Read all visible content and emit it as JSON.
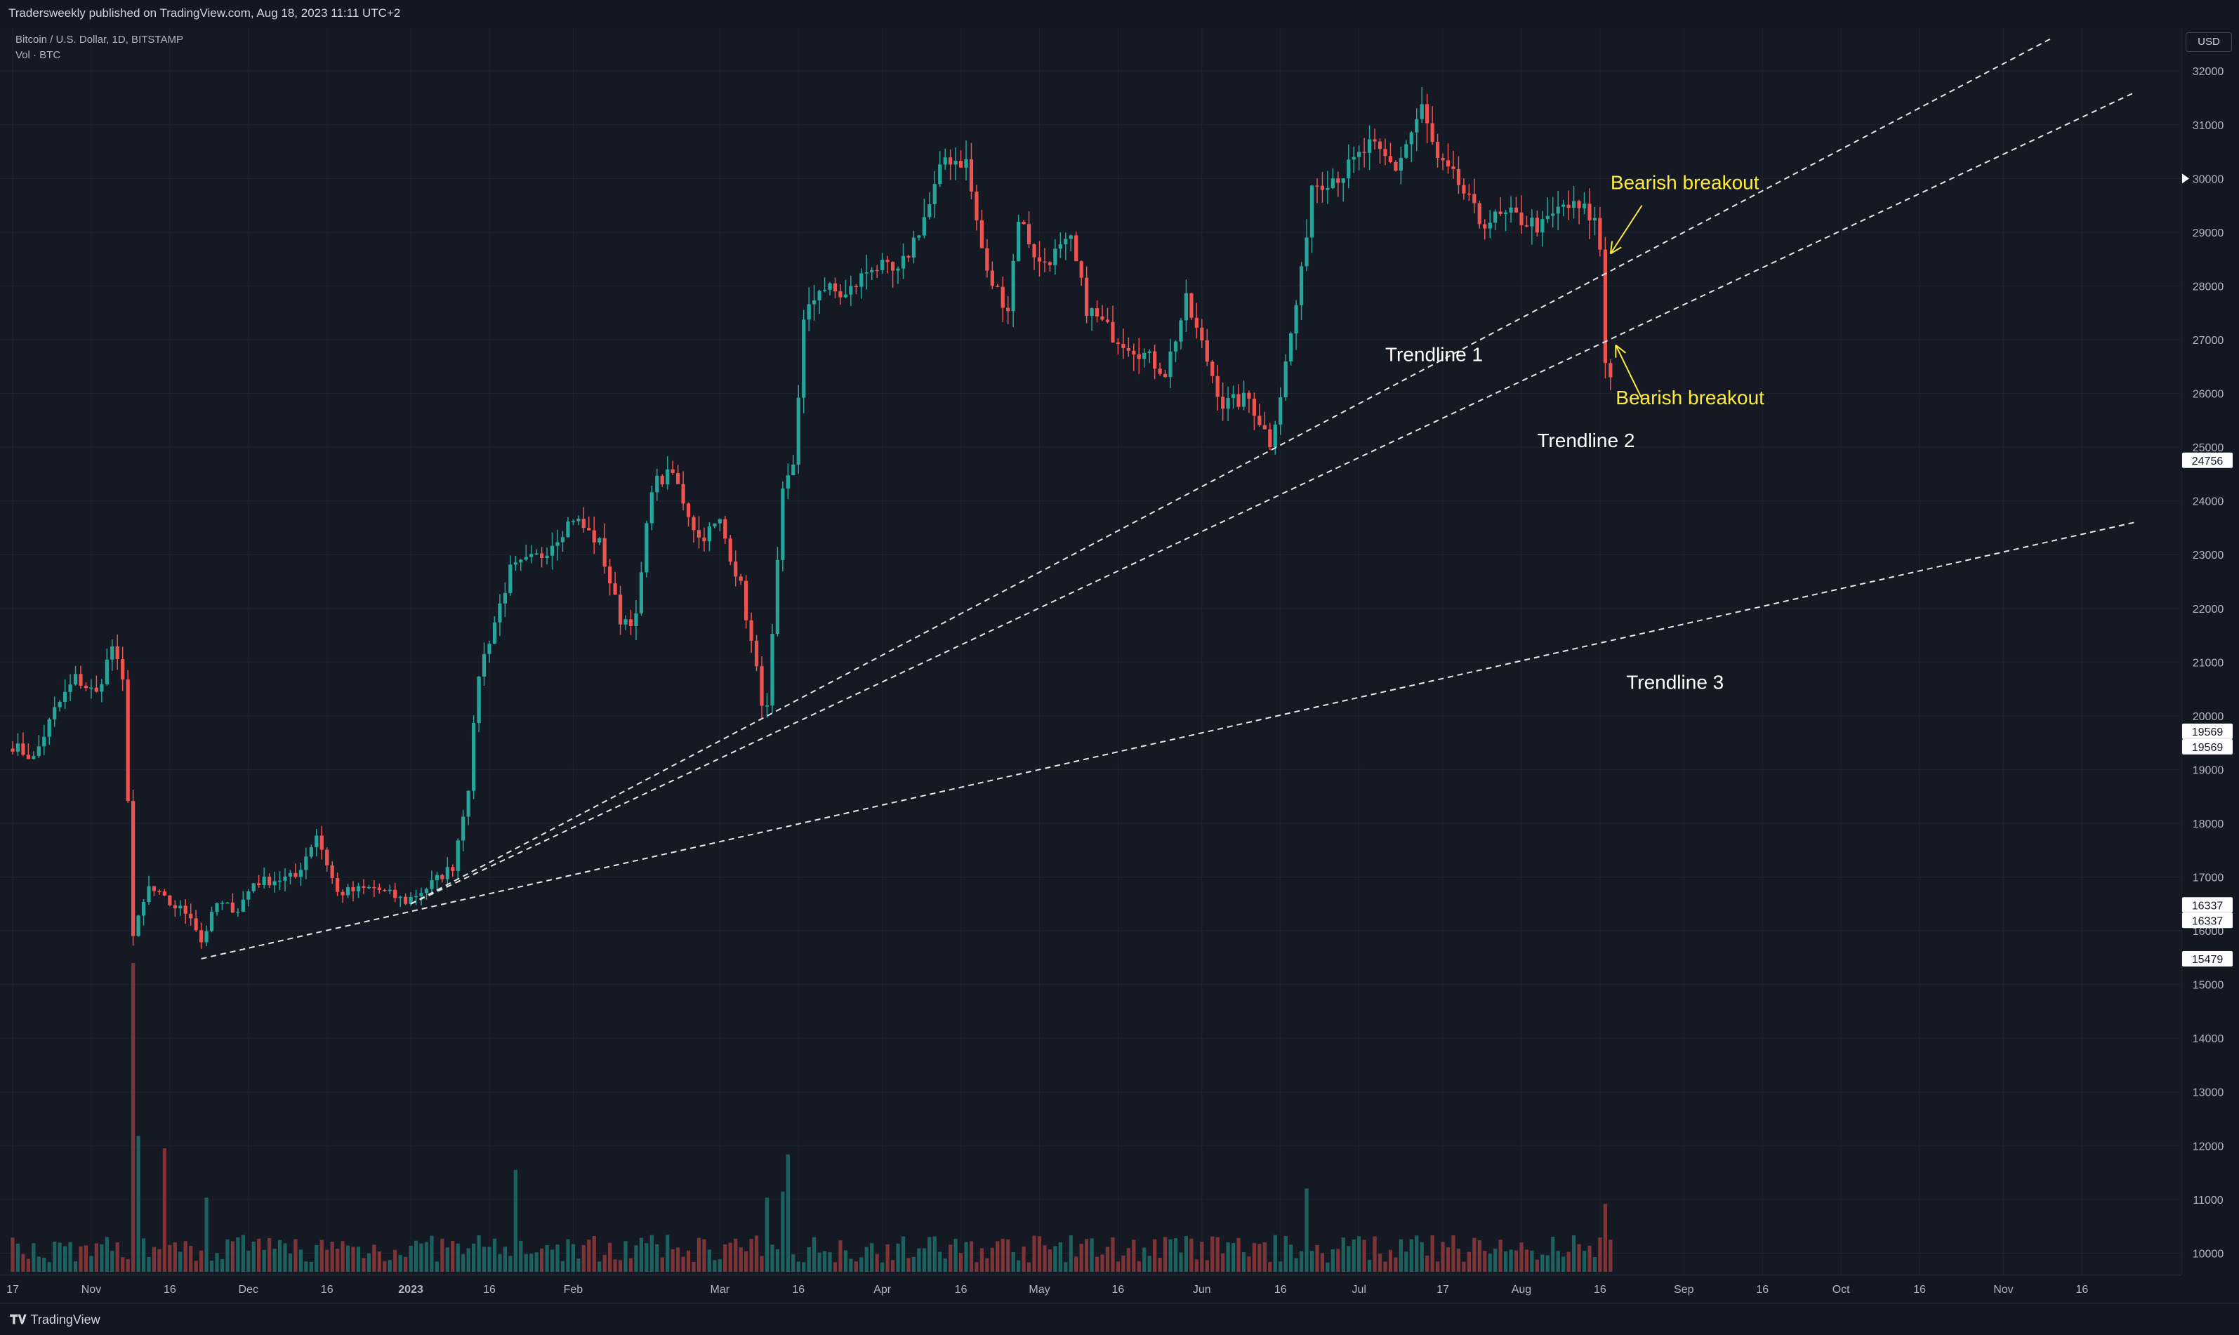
{
  "header": {
    "publish_text": "Tradersweekly published on TradingView.com, Aug 18, 2023 11:11 UTC+2"
  },
  "legend": {
    "symbol_line": "Bitcoin / U.S. Dollar, 1D, BITSTAMP",
    "volume_line": "Vol · BTC"
  },
  "price_axis": {
    "currency_button": "USD"
  },
  "footer": {
    "brand": "TradingView"
  },
  "colors": {
    "background": "#131722",
    "up": "#26a69a",
    "down": "#ef5350",
    "annotation_yellow": "#ffeb3b",
    "text": "#d1d4dc"
  },
  "chart_data": {
    "type": "candlestick",
    "title": "Bitcoin / U.S. Dollar, 1D, BITSTAMP",
    "y_axis": {
      "min": 9600,
      "max": 32800,
      "tick_labels": [
        "10000",
        "11000",
        "12000",
        "13000",
        "14000",
        "15000",
        "16000",
        "17000",
        "18000",
        "19000",
        "20000",
        "21000",
        "22000",
        "23000",
        "24000",
        "25000",
        "26000",
        "27000",
        "28000",
        "29000",
        "30000",
        "31000",
        "32000"
      ]
    },
    "x_axis": {
      "start_date": "2022-10-17",
      "end_date": "2023-11-26",
      "tick_labels": [
        {
          "date": "2022-10-17",
          "label": "17"
        },
        {
          "date": "2022-11-01",
          "label": "Nov"
        },
        {
          "date": "2022-11-16",
          "label": "16"
        },
        {
          "date": "2022-12-01",
          "label": "Dec"
        },
        {
          "date": "2022-12-16",
          "label": "16"
        },
        {
          "date": "2023-01-01",
          "label": "2023"
        },
        {
          "date": "2023-01-16",
          "label": "16"
        },
        {
          "date": "2023-02-01",
          "label": "Feb"
        },
        {
          "date": "2023-03-01",
          "label": "Mar"
        },
        {
          "date": "2023-03-16",
          "label": "16"
        },
        {
          "date": "2023-04-01",
          "label": "Apr"
        },
        {
          "date": "2023-04-16",
          "label": "16"
        },
        {
          "date": "2023-05-01",
          "label": "May"
        },
        {
          "date": "2023-05-16",
          "label": "16"
        },
        {
          "date": "2023-06-01",
          "label": "Jun"
        },
        {
          "date": "2023-06-16",
          "label": "16"
        },
        {
          "date": "2023-07-01",
          "label": "Jul"
        },
        {
          "date": "2023-07-17",
          "label": "17"
        },
        {
          "date": "2023-08-01",
          "label": "Aug"
        },
        {
          "date": "2023-08-16",
          "label": "16"
        },
        {
          "date": "2023-09-01",
          "label": "Sep"
        },
        {
          "date": "2023-09-16",
          "label": "16"
        },
        {
          "date": "2023-10-01",
          "label": "Oct"
        },
        {
          "date": "2023-10-16",
          "label": "16"
        },
        {
          "date": "2023-11-01",
          "label": "Nov"
        },
        {
          "date": "2023-11-16",
          "label": "16"
        }
      ]
    },
    "close_path": [
      [
        "2022-10-17",
        19450
      ],
      [
        "2022-10-21",
        19200
      ],
      [
        "2022-10-25",
        20100
      ],
      [
        "2022-10-29",
        20700
      ],
      [
        "2022-11-02",
        20400
      ],
      [
        "2022-11-05",
        21300
      ],
      [
        "2022-11-07",
        20600
      ],
      [
        "2022-11-08",
        18500
      ],
      [
        "2022-11-09",
        15900
      ],
      [
        "2022-11-12",
        16800
      ],
      [
        "2022-11-16",
        16500
      ],
      [
        "2022-11-20",
        16300
      ],
      [
        "2022-11-22",
        15800
      ],
      [
        "2022-11-25",
        16500
      ],
      [
        "2022-11-29",
        16400
      ],
      [
        "2022-12-02",
        16900
      ],
      [
        "2022-12-10",
        17000
      ],
      [
        "2022-12-14",
        17800
      ],
      [
        "2022-12-18",
        16700
      ],
      [
        "2022-12-25",
        16800
      ],
      [
        "2022-12-31",
        16550
      ],
      [
        "2023-01-04",
        16800
      ],
      [
        "2023-01-09",
        17200
      ],
      [
        "2023-01-12",
        18700
      ],
      [
        "2023-01-14",
        20800
      ],
      [
        "2023-01-20",
        22700
      ],
      [
        "2023-01-26",
        23000
      ],
      [
        "2023-02-01",
        23700
      ],
      [
        "2023-02-06",
        23200
      ],
      [
        "2023-02-10",
        21800
      ],
      [
        "2023-02-13",
        21800
      ],
      [
        "2023-02-16",
        24300
      ],
      [
        "2023-02-20",
        24500
      ],
      [
        "2023-02-25",
        23300
      ],
      [
        "2023-03-01",
        23600
      ],
      [
        "2023-03-05",
        22400
      ],
      [
        "2023-03-09",
        20300
      ],
      [
        "2023-03-10",
        20100
      ],
      [
        "2023-03-13",
        24100
      ],
      [
        "2023-03-15",
        24700
      ],
      [
        "2023-03-17",
        27300
      ],
      [
        "2023-03-20",
        28000
      ],
      [
        "2023-03-25",
        27800
      ],
      [
        "2023-03-30",
        28400
      ],
      [
        "2023-04-04",
        28200
      ],
      [
        "2023-04-10",
        29500
      ],
      [
        "2023-04-13",
        30400
      ],
      [
        "2023-04-17",
        30300
      ],
      [
        "2023-04-19",
        29200
      ],
      [
        "2023-04-21",
        28200
      ],
      [
        "2023-04-25",
        27600
      ],
      [
        "2023-04-27",
        29300
      ],
      [
        "2023-05-01",
        28400
      ],
      [
        "2023-05-07",
        28800
      ],
      [
        "2023-05-10",
        27600
      ],
      [
        "2023-05-15",
        27100
      ],
      [
        "2023-05-20",
        26800
      ],
      [
        "2023-05-25",
        26400
      ],
      [
        "2023-05-29",
        27700
      ],
      [
        "2023-06-01",
        26900
      ],
      [
        "2023-06-05",
        25800
      ],
      [
        "2023-06-10",
        25900
      ],
      [
        "2023-06-14",
        25100
      ],
      [
        "2023-06-16",
        26000
      ],
      [
        "2023-06-20",
        28200
      ],
      [
        "2023-06-22",
        29900
      ],
      [
        "2023-06-28",
        30100
      ],
      [
        "2023-07-03",
        30600
      ],
      [
        "2023-07-08",
        30200
      ],
      [
        "2023-07-13",
        31300
      ],
      [
        "2023-07-16",
        30300
      ],
      [
        "2023-07-20",
        29900
      ],
      [
        "2023-07-24",
        29200
      ],
      [
        "2023-07-30",
        29300
      ],
      [
        "2023-08-05",
        29100
      ],
      [
        "2023-08-09",
        29500
      ],
      [
        "2023-08-13",
        29400
      ],
      [
        "2023-08-15",
        29200
      ],
      [
        "2023-08-16",
        28700
      ],
      [
        "2023-08-17",
        26600
      ],
      [
        "2023-08-18",
        26400
      ]
    ],
    "candles": {
      "first_date": "2022-10-17",
      "last_date": "2023-08-18",
      "up_color": "#26a69a",
      "down_color": "#ef5350"
    },
    "volume": {
      "series_name": "Vol · BTC",
      "spikes": [
        [
          "2022-11-09",
          1
        ],
        [
          "2022-11-10",
          0.44
        ],
        [
          "2022-11-15",
          0.4
        ],
        [
          "2022-11-23",
          0.24
        ],
        [
          "2023-01-21",
          0.33
        ],
        [
          "2023-03-14",
          0.38
        ],
        [
          "2023-03-10",
          0.24
        ],
        [
          "2023-03-13",
          0.26
        ],
        [
          "2023-06-21",
          0.27
        ],
        [
          "2023-08-17",
          0.22
        ]
      ]
    },
    "trendlines": [
      {
        "name": "Trendline 1",
        "style": "dashed",
        "p1": [
          "2023-01-01",
          16500
        ],
        "p2": [
          "2023-11-10",
          32600
        ]
      },
      {
        "name": "Trendline 2",
        "style": "dashed",
        "p1": [
          "2023-01-01",
          16500
        ],
        "p2": [
          "2023-11-26",
          31600
        ]
      },
      {
        "name": "Trendline 3",
        "style": "dashed",
        "p1": [
          "2022-11-22",
          15479
        ],
        "p2": [
          "2023-11-26",
          23600
        ]
      }
    ],
    "annotations": [
      {
        "text": "Trendline 1",
        "color": "#ffffff",
        "date": "2023-07-06",
        "price": 26600
      },
      {
        "text": "Trendline 2",
        "color": "#ffffff",
        "date": "2023-08-04",
        "price": 25000
      },
      {
        "text": "Trendline 3",
        "color": "#ffffff",
        "date": "2023-08-21",
        "price": 20500
      },
      {
        "text": "Bearish breakout",
        "color": "#ffeb3b",
        "date": "2023-08-18",
        "price": 29800
      },
      {
        "text": "Bearish breakout",
        "color": "#ffeb3b",
        "date": "2023-08-19",
        "price": 25800
      }
    ],
    "arrows": [
      {
        "from": [
          "2023-08-24",
          29500
        ],
        "to": [
          "2023-08-18",
          28600
        ],
        "color": "#ffeb3b"
      },
      {
        "from": [
          "2023-08-24",
          25900
        ],
        "to": [
          "2023-08-19",
          26900
        ],
        "color": "#ffeb3b"
      }
    ],
    "price_labels": [
      {
        "text": "30000",
        "style": "marker"
      },
      {
        "text": "24756",
        "style": "box"
      },
      {
        "text": "19569",
        "style": "box"
      },
      {
        "text": "19569",
        "style": "box"
      },
      {
        "text": "16337",
        "style": "box"
      },
      {
        "text": "16337",
        "style": "box"
      },
      {
        "text": "15479",
        "style": "box"
      }
    ]
  }
}
